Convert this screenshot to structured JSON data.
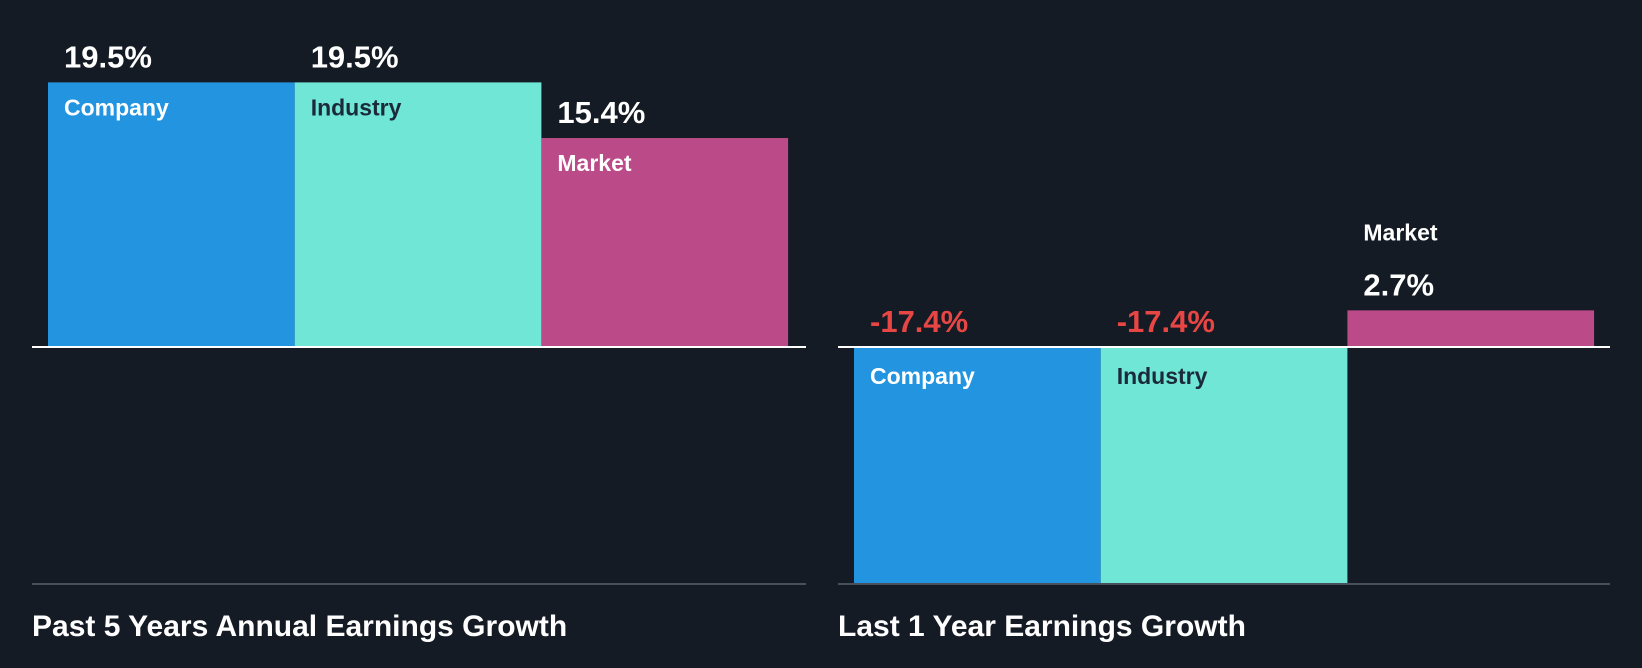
{
  "colors": {
    "background": "#151b24",
    "company": "#2394e0",
    "industry": "#6fe6d6",
    "market": "#bb4a88",
    "positive_text": "#ffffff",
    "negative_text": "#e84545",
    "inner_label_dark": "#1b2a3a",
    "inner_label_light": "#ffffff",
    "zero_line": "#ffffff",
    "base_line": "#4a5059"
  },
  "chart_data": [
    {
      "type": "bar",
      "title": "Past 5 Years Annual Earnings Growth",
      "categories": [
        "Company",
        "Industry",
        "Market"
      ],
      "values": [
        19.5,
        19.5,
        15.4
      ],
      "value_labels": [
        "19.5%",
        "19.5%",
        "15.4%"
      ],
      "unit": "%",
      "ylim": [
        -17.4,
        19.5
      ],
      "grid": false,
      "legend": "none"
    },
    {
      "type": "bar",
      "title": "Last 1 Year Earnings Growth",
      "categories": [
        "Company",
        "Industry",
        "Market"
      ],
      "values": [
        -17.4,
        -17.4,
        2.7
      ],
      "value_labels": [
        "-17.4%",
        "-17.4%",
        "2.7%"
      ],
      "unit": "%",
      "ylim": [
        -17.4,
        19.5
      ],
      "grid": false,
      "legend": "none"
    }
  ]
}
